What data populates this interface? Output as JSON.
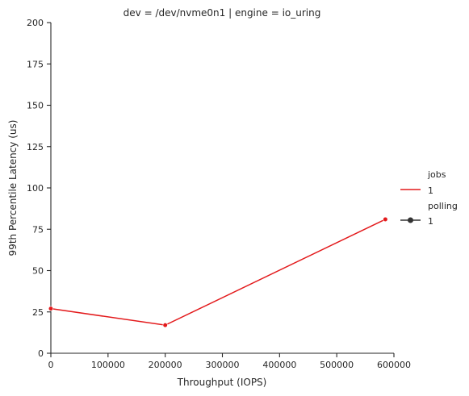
{
  "chart_data": {
    "type": "line",
    "title": "dev = /dev/nvme0n1 | engine = io_uring",
    "xlabel": "Throughput (IOPS)",
    "ylabel": "99th Percentile Latency (us)",
    "xlim": [
      0,
      600000
    ],
    "ylim": [
      0,
      200
    ],
    "xticks": [
      0,
      100000,
      200000,
      300000,
      400000,
      500000,
      600000
    ],
    "yticks": [
      0,
      25,
      50,
      75,
      100,
      125,
      150,
      175,
      200
    ],
    "grid": false,
    "legend_position": "right",
    "legend": {
      "groups": [
        {
          "title": "jobs",
          "entries": [
            {
              "label": "1",
              "marker": "line",
              "color": "#e31a1c"
            }
          ]
        },
        {
          "title": "polling",
          "entries": [
            {
              "label": "1",
              "marker": "line-dot",
              "color": "#333333"
            }
          ]
        }
      ]
    },
    "series": [
      {
        "color": "#e31a1c",
        "x": [
          0,
          200000,
          585000
        ],
        "y": [
          27,
          17,
          81
        ]
      }
    ]
  }
}
